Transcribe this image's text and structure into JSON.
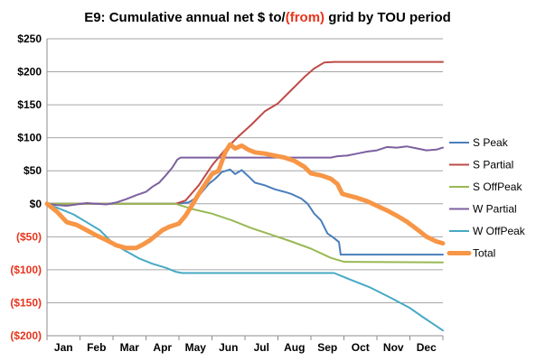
{
  "chart_data": {
    "type": "line",
    "title_parts": [
      {
        "text": "E9: Cumulative annual net $ to/",
        "color": "#000000"
      },
      {
        "text": "(from)",
        "color": "#e8341c"
      },
      {
        "text": " grid by TOU period",
        "color": "#000000"
      }
    ],
    "xlabel": "",
    "ylabel": "",
    "ylim": [
      -200,
      250
    ],
    "xlim": [
      0,
      12
    ],
    "x_ticks": [
      {
        "label": "Jan",
        "x": 0.5
      },
      {
        "label": "Feb",
        "x": 1.5
      },
      {
        "label": "Mar",
        "x": 2.5
      },
      {
        "label": "Apr",
        "x": 3.5
      },
      {
        "label": "May",
        "x": 4.5
      },
      {
        "label": "Jun",
        "x": 5.5
      },
      {
        "label": "Jul",
        "x": 6.5
      },
      {
        "label": "Aug",
        "x": 7.5
      },
      {
        "label": "Sep",
        "x": 8.5
      },
      {
        "label": "Oct",
        "x": 9.5
      },
      {
        "label": "Nov",
        "x": 10.5
      },
      {
        "label": "Dec",
        "x": 11.5
      }
    ],
    "y_ticks": [
      {
        "value": 250,
        "label": "$250",
        "color": "#000000"
      },
      {
        "value": 200,
        "label": "$200",
        "color": "#000000"
      },
      {
        "value": 150,
        "label": "$150",
        "color": "#000000"
      },
      {
        "value": 100,
        "label": "$100",
        "color": "#000000"
      },
      {
        "value": 50,
        "label": "$50",
        "color": "#000000"
      },
      {
        "value": 0,
        "label": "$0",
        "color": "#000000"
      },
      {
        "value": -50,
        "label": "($50)",
        "color": "#e8341c"
      },
      {
        "value": -100,
        "label": "($100)",
        "color": "#e8341c"
      },
      {
        "value": -150,
        "label": "($150)",
        "color": "#e8341c"
      },
      {
        "value": -200,
        "label": "($200)",
        "color": "#e8341c"
      }
    ],
    "grid": "horizontal",
    "legend_position": "right",
    "series": [
      {
        "name": "S Peak",
        "color": "#4a7ebb",
        "width": 2,
        "points": [
          [
            0,
            0
          ],
          [
            3.9,
            0
          ],
          [
            4.3,
            2
          ],
          [
            4.6,
            12
          ],
          [
            4.9,
            30
          ],
          [
            5.1,
            38
          ],
          [
            5.3,
            48
          ],
          [
            5.55,
            52
          ],
          [
            5.7,
            45
          ],
          [
            5.9,
            51
          ],
          [
            6.1,
            42
          ],
          [
            6.3,
            32
          ],
          [
            6.6,
            28
          ],
          [
            6.9,
            22
          ],
          [
            7.2,
            18
          ],
          [
            7.4,
            15
          ],
          [
            7.7,
            8
          ],
          [
            7.9,
            0
          ],
          [
            8.1,
            -15
          ],
          [
            8.3,
            -25
          ],
          [
            8.5,
            -45
          ],
          [
            8.7,
            -52
          ],
          [
            8.85,
            -58
          ],
          [
            8.9,
            -77
          ],
          [
            12,
            -77
          ]
        ]
      },
      {
        "name": "S Partial",
        "color": "#be4b48",
        "width": 2,
        "points": [
          [
            0,
            0
          ],
          [
            3.9,
            0
          ],
          [
            4.2,
            5
          ],
          [
            4.6,
            28
          ],
          [
            5.0,
            58
          ],
          [
            5.4,
            82
          ],
          [
            5.8,
            102
          ],
          [
            6.2,
            120
          ],
          [
            6.6,
            140
          ],
          [
            7.0,
            152
          ],
          [
            7.4,
            172
          ],
          [
            7.8,
            192
          ],
          [
            8.1,
            205
          ],
          [
            8.4,
            214
          ],
          [
            8.7,
            215
          ],
          [
            12,
            215
          ]
        ]
      },
      {
        "name": "S OffPeak",
        "color": "#98b954",
        "width": 2,
        "points": [
          [
            0,
            0
          ],
          [
            3.9,
            0
          ],
          [
            4.4,
            -8
          ],
          [
            5.0,
            -15
          ],
          [
            5.6,
            -25
          ],
          [
            6.2,
            -37
          ],
          [
            6.8,
            -47
          ],
          [
            7.4,
            -57
          ],
          [
            8.0,
            -68
          ],
          [
            8.6,
            -82
          ],
          [
            9.0,
            -88
          ],
          [
            12,
            -89
          ]
        ]
      },
      {
        "name": "W Partial",
        "color": "#7d60a0",
        "width": 2,
        "points": [
          [
            0,
            0
          ],
          [
            0.3,
            -2
          ],
          [
            0.6,
            -3
          ],
          [
            0.9,
            -1
          ],
          [
            1.2,
            1
          ],
          [
            1.5,
            0
          ],
          [
            1.8,
            -1
          ],
          [
            2.1,
            2
          ],
          [
            2.4,
            7
          ],
          [
            2.7,
            13
          ],
          [
            3.0,
            18
          ],
          [
            3.2,
            26
          ],
          [
            3.4,
            32
          ],
          [
            3.6,
            43
          ],
          [
            3.8,
            55
          ],
          [
            3.95,
            67
          ],
          [
            4.05,
            70
          ],
          [
            8.6,
            70
          ],
          [
            8.8,
            72
          ],
          [
            9.1,
            73
          ],
          [
            9.4,
            76
          ],
          [
            9.7,
            79
          ],
          [
            10.0,
            81
          ],
          [
            10.3,
            86
          ],
          [
            10.6,
            85
          ],
          [
            10.9,
            87
          ],
          [
            11.2,
            84
          ],
          [
            11.5,
            81
          ],
          [
            11.8,
            82
          ],
          [
            12,
            85
          ]
        ]
      },
      {
        "name": "W OffPeak",
        "color": "#46aac5",
        "width": 2,
        "points": [
          [
            0,
            0
          ],
          [
            0.4,
            -8
          ],
          [
            0.8,
            -16
          ],
          [
            1.2,
            -28
          ],
          [
            1.6,
            -40
          ],
          [
            2.0,
            -60
          ],
          [
            2.4,
            -72
          ],
          [
            2.8,
            -83
          ],
          [
            3.2,
            -91
          ],
          [
            3.6,
            -97
          ],
          [
            3.9,
            -103
          ],
          [
            4.1,
            -105
          ],
          [
            8.7,
            -105
          ],
          [
            9.2,
            -115
          ],
          [
            9.8,
            -127
          ],
          [
            10.4,
            -142
          ],
          [
            11.0,
            -158
          ],
          [
            11.4,
            -172
          ],
          [
            11.7,
            -182
          ],
          [
            12,
            -192
          ]
        ]
      },
      {
        "name": "Total",
        "color": "#f79646",
        "width": 5,
        "points": [
          [
            0,
            0
          ],
          [
            0.3,
            -12
          ],
          [
            0.6,
            -28
          ],
          [
            0.9,
            -32
          ],
          [
            1.2,
            -40
          ],
          [
            1.5,
            -48
          ],
          [
            1.8,
            -55
          ],
          [
            2.1,
            -63
          ],
          [
            2.4,
            -67
          ],
          [
            2.7,
            -67
          ],
          [
            2.9,
            -62
          ],
          [
            3.1,
            -56
          ],
          [
            3.3,
            -48
          ],
          [
            3.5,
            -40
          ],
          [
            3.7,
            -35
          ],
          [
            4.0,
            -30
          ],
          [
            4.2,
            -18
          ],
          [
            4.4,
            -2
          ],
          [
            4.6,
            15
          ],
          [
            4.8,
            30
          ],
          [
            5.0,
            45
          ],
          [
            5.2,
            50
          ],
          [
            5.4,
            78
          ],
          [
            5.55,
            90
          ],
          [
            5.7,
            84
          ],
          [
            5.9,
            88
          ],
          [
            6.1,
            82
          ],
          [
            6.3,
            78
          ],
          [
            6.6,
            76
          ],
          [
            6.9,
            73
          ],
          [
            7.2,
            70
          ],
          [
            7.5,
            65
          ],
          [
            7.8,
            56
          ],
          [
            8.0,
            46
          ],
          [
            8.3,
            43
          ],
          [
            8.6,
            38
          ],
          [
            8.8,
            30
          ],
          [
            8.95,
            15
          ],
          [
            9.1,
            13
          ],
          [
            9.4,
            9
          ],
          [
            9.7,
            4
          ],
          [
            10.0,
            -3
          ],
          [
            10.3,
            -10
          ],
          [
            10.6,
            -18
          ],
          [
            10.9,
            -27
          ],
          [
            11.2,
            -38
          ],
          [
            11.5,
            -50
          ],
          [
            11.8,
            -57
          ],
          [
            12,
            -60
          ]
        ]
      }
    ]
  },
  "legend": {
    "items": [
      "S Peak",
      "S Partial",
      "S OffPeak",
      "W Partial",
      "W OffPeak",
      "Total"
    ]
  }
}
